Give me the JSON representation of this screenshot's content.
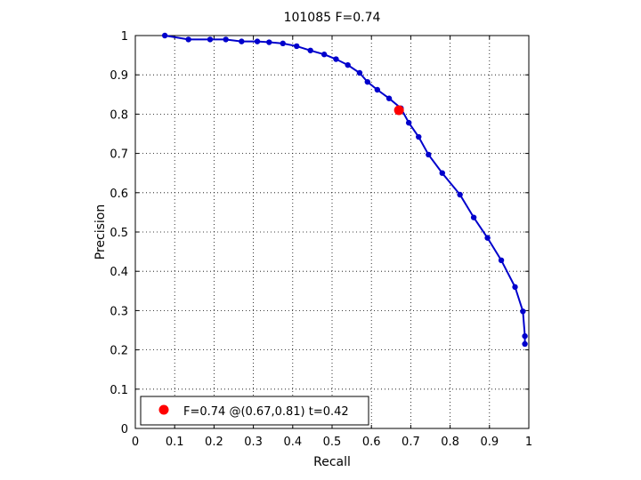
{
  "chart_data": {
    "type": "line",
    "title": "101085 F=0.74",
    "xlabel": "Recall",
    "ylabel": "Precision",
    "xlim": [
      0,
      1
    ],
    "ylim": [
      0,
      1
    ],
    "grid": true,
    "xticks": [
      "0",
      "0.1",
      "0.2",
      "0.3",
      "0.4",
      "0.5",
      "0.6",
      "0.7",
      "0.8",
      "0.9",
      "1"
    ],
    "yticks": [
      "0",
      "0.1",
      "0.2",
      "0.3",
      "0.4",
      "0.5",
      "0.6",
      "0.7",
      "0.8",
      "0.9",
      "1"
    ],
    "series": [
      {
        "color": "#0000cc",
        "points": [
          [
            0.075,
            1.0
          ],
          [
            0.135,
            0.99
          ],
          [
            0.19,
            0.99
          ],
          [
            0.23,
            0.99
          ],
          [
            0.27,
            0.985
          ],
          [
            0.31,
            0.985
          ],
          [
            0.34,
            0.983
          ],
          [
            0.375,
            0.98
          ],
          [
            0.41,
            0.973
          ],
          [
            0.445,
            0.962
          ],
          [
            0.48,
            0.952
          ],
          [
            0.51,
            0.94
          ],
          [
            0.54,
            0.925
          ],
          [
            0.57,
            0.905
          ],
          [
            0.59,
            0.882
          ],
          [
            0.615,
            0.862
          ],
          [
            0.645,
            0.84
          ],
          [
            0.675,
            0.815
          ],
          [
            0.695,
            0.778
          ],
          [
            0.72,
            0.742
          ],
          [
            0.745,
            0.697
          ],
          [
            0.78,
            0.65
          ],
          [
            0.825,
            0.595
          ],
          [
            0.86,
            0.537
          ],
          [
            0.895,
            0.485
          ],
          [
            0.93,
            0.428
          ],
          [
            0.965,
            0.36
          ],
          [
            0.985,
            0.298
          ],
          [
            0.99,
            0.235
          ],
          [
            0.99,
            0.215
          ]
        ]
      }
    ],
    "highlight": {
      "x": 0.67,
      "y": 0.81,
      "color": "#ff0000",
      "legend": "F=0.74 @(0.67,0.81) t=0.42"
    }
  }
}
